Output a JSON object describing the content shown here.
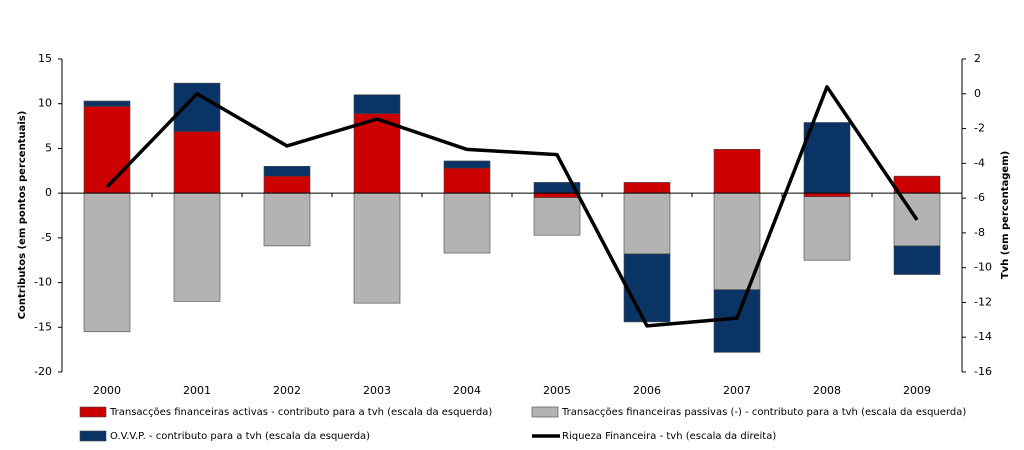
{
  "chart_data": {
    "type": "bar",
    "stacked": true,
    "legend": "bottom",
    "ylabel": "Contributos (em pontos percentuais)",
    "y2label": "Tvh (em percentagem)",
    "categories": [
      "2000",
      "2001",
      "2002",
      "2003",
      "2004",
      "2005",
      "2006",
      "2007",
      "2008",
      "2009"
    ],
    "ylim": [
      -20,
      15
    ],
    "yticks": [
      15,
      10,
      5,
      0,
      -5,
      -10,
      -15,
      -20
    ],
    "y2lim": [
      -16,
      2
    ],
    "y2ticks": [
      2,
      0,
      -2,
      -4,
      -6,
      -8,
      -10,
      -12,
      -14,
      -16
    ],
    "series": [
      {
        "name": "Transacções financeiras activas - contributo  para a tvh (escala da esquerda)",
        "color": "#cc0000",
        "type": "bar",
        "values": [
          9.7,
          6.9,
          1.9,
          8.9,
          2.8,
          -0.5,
          1.2,
          4.9,
          -0.4,
          1.9
        ]
      },
      {
        "name": "Transacções financeiras passivas (-) - contributo  para a tvh (escala da esquerda)",
        "color": "#b3b3b3",
        "type": "bar",
        "values": [
          -15.5,
          -12.1,
          -5.9,
          -12.3,
          -6.7,
          -4.2,
          -6.8,
          -10.8,
          -7.1,
          -5.9
        ]
      },
      {
        "name": "O.V.V.P. - contributo  para a tvh (escala da esquerda)",
        "color": "#0b3466",
        "type": "bar",
        "values": [
          0.6,
          5.4,
          1.1,
          2.1,
          0.8,
          1.2,
          -7.6,
          -7.0,
          7.9,
          -3.2
        ]
      },
      {
        "name": "Riqueza Financeira - tvh (escala da direita)",
        "color": "#000000",
        "type": "line",
        "axis": "y2",
        "values": [
          -5.36,
          0.0,
          -3.0,
          -1.45,
          -3.2,
          -3.5,
          -13.35,
          -12.9,
          0.4,
          -7.25
        ]
      }
    ]
  }
}
